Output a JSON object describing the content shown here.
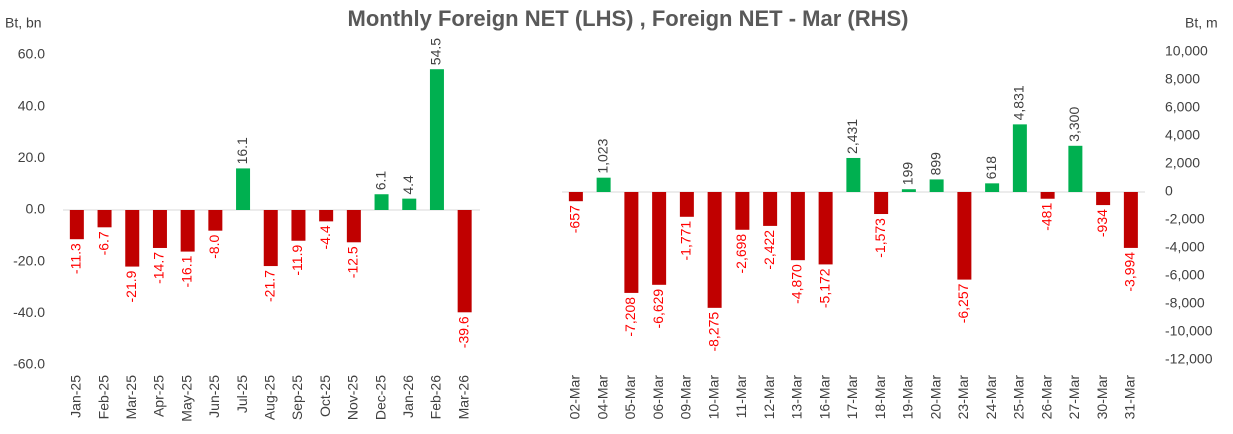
{
  "chart_data": [
    {
      "type": "bar",
      "title": "Monthly Foreign NET (LHS) , Foreign NET - Mar (RHS)",
      "y_label": "Bt, bn",
      "categories": [
        "Jan-25",
        "Feb-25",
        "Mar-25",
        "Apr-25",
        "May-25",
        "Jun-25",
        "Jul-25",
        "Aug-25",
        "Sep-25",
        "Oct-25",
        "Nov-25",
        "Dec-25",
        "Jan-26",
        "Feb-26",
        "Mar-26"
      ],
      "values": [
        -11.3,
        -6.7,
        -21.9,
        -14.7,
        -16.1,
        -8.0,
        16.1,
        -21.7,
        -11.9,
        -4.4,
        -12.5,
        6.1,
        4.4,
        54.5,
        -39.6
      ],
      "value_labels": [
        "-11.3",
        "-6.7",
        "-21.9",
        "-14.7",
        "-16.1",
        "-8.0",
        "16.1",
        "-21.7",
        "-11.9",
        "-4.4",
        "-12.5",
        "6.1",
        "4.4",
        "54.5",
        "-39.6"
      ],
      "color_positive": "#00b050",
      "color_negative": "#c00000",
      "ylim": [
        -60,
        60
      ],
      "yticks": [
        {
          "value": -60,
          "label": "-60.0"
        },
        {
          "value": -40,
          "label": "-40.0"
        },
        {
          "value": -20,
          "label": "-20.0"
        },
        {
          "value": 0,
          "label": "0.0"
        },
        {
          "value": 20,
          "label": "20.0"
        },
        {
          "value": 40,
          "label": "40.0"
        },
        {
          "value": 60,
          "label": "60.0"
        }
      ],
      "grid": false
    },
    {
      "type": "bar",
      "y_label": "Bt, m",
      "categories": [
        "02-Mar",
        "04-Mar",
        "05-Mar",
        "06-Mar",
        "09-Mar",
        "10-Mar",
        "11-Mar",
        "12-Mar",
        "13-Mar",
        "16-Mar",
        "17-Mar",
        "18-Mar",
        "19-Mar",
        "20-Mar",
        "23-Mar",
        "24-Mar",
        "25-Mar",
        "26-Mar",
        "27-Mar",
        "30-Mar",
        "31-Mar"
      ],
      "values": [
        -657,
        1023,
        -7208,
        -6629,
        -1771,
        -8275,
        -2698,
        -2422,
        -4870,
        -5172,
        2431,
        -1573,
        199,
        899,
        -6257,
        618,
        4831,
        -481,
        3300,
        -934,
        -3994
      ],
      "value_labels": [
        "-657",
        "1,023",
        "-7,208",
        "-6,629",
        "-1,771",
        "-8,275",
        "-2,698",
        "-2,422",
        "-4,870",
        "-5,172",
        "2,431",
        "-1,573",
        "199",
        "899",
        "-6,257",
        "618",
        "4,831",
        "-481",
        "3,300",
        "-934",
        "-3,994"
      ],
      "color_positive": "#00b050",
      "color_negative": "#c00000",
      "ylim": [
        -12000,
        10000
      ],
      "yticks": [
        {
          "value": -12000,
          "label": "-12,000"
        },
        {
          "value": -10000,
          "label": "-10,000"
        },
        {
          "value": -8000,
          "label": "-8,000"
        },
        {
          "value": -6000,
          "label": "-6,000"
        },
        {
          "value": -4000,
          "label": "-4,000"
        },
        {
          "value": -2000,
          "label": "-2,000"
        },
        0,
        {
          "value": 2000,
          "label": "2,000"
        },
        {
          "value": 4000,
          "label": "4,000"
        },
        {
          "value": 6000,
          "label": "6,000"
        },
        {
          "value": 8000,
          "label": "8,000"
        },
        {
          "value": 10000,
          "label": "10,000"
        }
      ],
      "axis": "y2",
      "grid": false
    }
  ]
}
